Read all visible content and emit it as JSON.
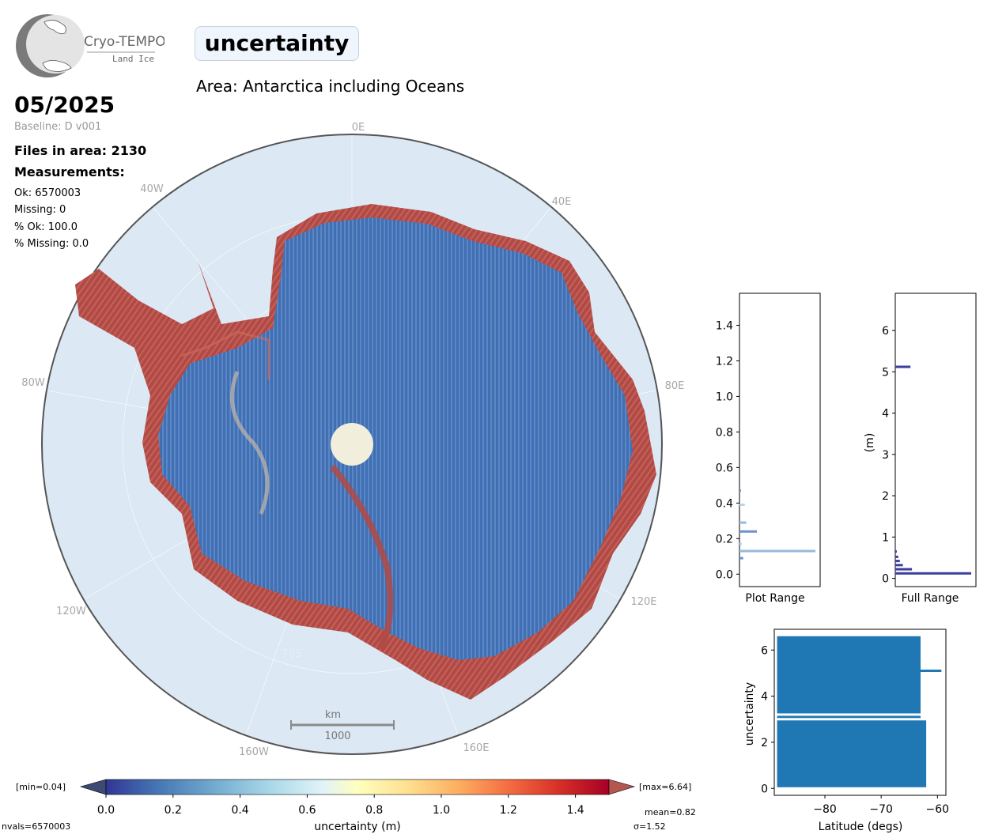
{
  "header": {
    "logo_text": "Cryo-TEMPO",
    "logo_subtext": "Land Ice",
    "title": "uncertainty",
    "area": "Area: Antarctica including Oceans",
    "date": "05/2025",
    "baseline": "Baseline: D v001",
    "files": "Files in area: 2130",
    "measurements_heading": "Measurements:",
    "ok": "Ok: 6570003",
    "missing": "Missing: 0",
    "pct_ok": "% Ok: 100.0",
    "pct_missing": "% Missing: 0.0"
  },
  "map": {
    "lon_labels": [
      "0E",
      "40E",
      "80E",
      "120E",
      "160E",
      "160W",
      "120W",
      "80W",
      "40W"
    ],
    "lat_label": "70S",
    "scale_unit": "km",
    "scale_value": "1000",
    "colors": {
      "ocean": "#dce8f4",
      "ice_blue": "#3f6fb5",
      "ice_red": "#b04a44",
      "pole": "#f2eedc"
    }
  },
  "colorbar": {
    "min_label": "[min=0.04]",
    "max_label": "[max=6.64]",
    "ticks": [
      "0.0",
      "0.2",
      "0.4",
      "0.6",
      "0.8",
      "1.0",
      "1.2",
      "1.4"
    ],
    "label": "uncertainty (m)",
    "nvals": "nvals=6570003",
    "mean": "mean=0.82",
    "sigma": "σ=1.52",
    "colors": [
      "#313695",
      "#4575b4",
      "#74add1",
      "#abd9e9",
      "#e0f3f8",
      "#ffffbf",
      "#fee090",
      "#fdae61",
      "#f46d43",
      "#d73027",
      "#a50026"
    ]
  },
  "chart_data": [
    {
      "type": "bar",
      "orientation": "horizontal",
      "title": "",
      "xlabel": "Plot Range",
      "ylabel": "",
      "ylim": [
        -0.07,
        1.58
      ],
      "y_ticks": [
        "0.0",
        "0.2",
        "0.4",
        "0.6",
        "0.8",
        "1.0",
        "1.2",
        "1.4"
      ],
      "bins": [
        {
          "y": 0.09,
          "count": 0.05
        },
        {
          "y": 0.13,
          "count": 1.0
        },
        {
          "y": 0.17,
          "count": 0.03
        },
        {
          "y": 0.24,
          "count": 0.23
        },
        {
          "y": 0.29,
          "count": 0.09
        },
        {
          "y": 0.39,
          "count": 0.07
        },
        {
          "y": 0.47,
          "count": 0.02
        }
      ],
      "colors": [
        "#6e92c8",
        "#98b8da",
        "#b9d3e8"
      ]
    },
    {
      "type": "bar",
      "orientation": "horizontal",
      "title": "",
      "xlabel": "Full Range",
      "ylabel": "(m)",
      "ylim": [
        -0.2,
        6.9
      ],
      "y_ticks": [
        "0",
        "1",
        "2",
        "3",
        "4",
        "5",
        "6"
      ],
      "bins": [
        {
          "y": 0.12,
          "count": 1.0
        },
        {
          "y": 0.22,
          "count": 0.22
        },
        {
          "y": 0.32,
          "count": 0.1
        },
        {
          "y": 0.42,
          "count": 0.06
        },
        {
          "y": 0.52,
          "count": 0.04
        },
        {
          "y": 0.65,
          "count": 0.02
        },
        {
          "y": 5.12,
          "count": 0.2
        }
      ],
      "color": "#3a3f9c"
    },
    {
      "type": "scatter",
      "title": "",
      "xlabel": "Latitude (degs)",
      "ylabel": "uncertainty",
      "xlim": [
        -89,
        -58.5
      ],
      "ylim": [
        -0.3,
        6.9
      ],
      "x_ticks": [
        "−80",
        "−70",
        "−60"
      ],
      "y_ticks": [
        "0",
        "2",
        "4",
        "6"
      ],
      "bands": [
        {
          "x_from": -88.5,
          "x_to": -62,
          "y_from": 0.05,
          "y_to": 3.0
        },
        {
          "x_from": -88.5,
          "x_to": -63,
          "y_from": 3.0,
          "y_to": 6.6
        }
      ],
      "lines": [
        {
          "x_from": -88.5,
          "x_to": -61.5,
          "y": 3.0
        },
        {
          "x_from": -88.5,
          "x_to": -61.5,
          "y": 3.2
        },
        {
          "x_from": -88.5,
          "x_to": -59.3,
          "y": 5.1
        }
      ],
      "color": "#1f77b4"
    }
  ]
}
